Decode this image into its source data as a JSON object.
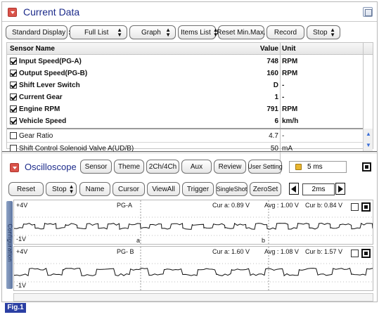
{
  "header": {
    "title": "Current Data"
  },
  "toolbar": {
    "standard_display": "Standard Display",
    "full_list": "Full List",
    "graph": "Graph",
    "items_list": "Items List",
    "reset_minmax": "Reset Min.Max.",
    "record": "Record",
    "stop": "Stop"
  },
  "table": {
    "headers": {
      "name": "Sensor Name",
      "value": "Value",
      "unit": "Unit"
    },
    "rows": [
      {
        "name": "Input Speed(PG-A)",
        "value": "748",
        "unit": "RPM",
        "checked": true
      },
      {
        "name": "Output Speed(PG-B)",
        "value": "160",
        "unit": "RPM",
        "checked": true
      },
      {
        "name": "Shift Lever Switch",
        "value": "D",
        "unit": "-",
        "checked": true
      },
      {
        "name": "Current Gear",
        "value": "1",
        "unit": "-",
        "checked": true
      },
      {
        "name": "Engine RPM",
        "value": "791",
        "unit": "RPM",
        "checked": true
      },
      {
        "name": "Vehicle Speed",
        "value": "6",
        "unit": "km/h",
        "checked": true
      },
      {
        "name": "Gear Ratio",
        "value": "4.7",
        "unit": "-",
        "checked": false
      },
      {
        "name": "Shift Control Solenoid Valve A(UD/B)",
        "value": "50",
        "unit": "mA",
        "checked": false
      }
    ]
  },
  "oscilloscope": {
    "title": "Oscilloscope",
    "buttons_top": {
      "sensor": "Sensor",
      "theme": "Theme",
      "ch": "2Ch/4Ch",
      "aux": "Aux",
      "review": "Review",
      "user_setting": "User Setting"
    },
    "time_value": "5 ms",
    "buttons_bottom": {
      "reset": "Reset",
      "stop": "Stop",
      "name": "Name",
      "cursor": "Cursor",
      "viewall": "ViewAll",
      "trigger": "Trigger",
      "singleshot": "SingleShot",
      "zeroset": "ZeroSet"
    },
    "timebase": "2ms",
    "side_tab": "Configuration",
    "channels": [
      {
        "label": "PG-A",
        "top_scale": "+4V",
        "bottom_scale": "-1V",
        "cur_a": "Cur a: 0.89 V",
        "avg": "Avg : 1.00 V",
        "cur_b": "Cur b: 0.84 V"
      },
      {
        "label": "PG- B",
        "top_scale": "+4V",
        "bottom_scale": "-1V",
        "cur_a": "Cur a: 1.60 V",
        "avg": "Avg : 1.08 V",
        "cur_b": "Cur b: 1.57 V"
      }
    ],
    "cursor_a": "a",
    "cursor_b": "b"
  },
  "figure_label": "Fig.1",
  "colors": {
    "title": "#1b2a8a",
    "icon_red": "#d9534a",
    "fig_bg": "#2b3fa3"
  }
}
